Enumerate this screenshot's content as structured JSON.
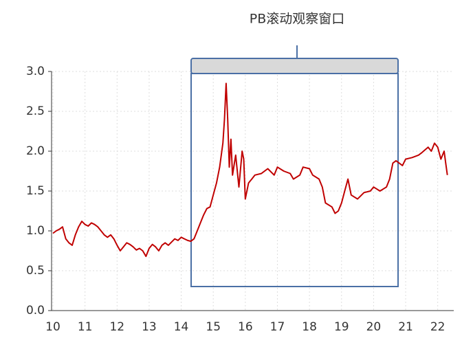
{
  "chart_data": {
    "type": "line",
    "annotation": "PB滚动观察窗口",
    "color": "#c00000",
    "grid": true,
    "x": [
      10.0,
      10.1,
      10.2,
      10.3,
      10.4,
      10.5,
      10.6,
      10.7,
      10.8,
      10.9,
      11.0,
      11.1,
      11.2,
      11.3,
      11.4,
      11.5,
      11.6,
      11.7,
      11.8,
      11.9,
      12.0,
      12.1,
      12.2,
      12.3,
      12.4,
      12.5,
      12.6,
      12.7,
      12.8,
      12.9,
      13.0,
      13.1,
      13.2,
      13.3,
      13.4,
      13.5,
      13.6,
      13.7,
      13.8,
      13.9,
      14.0,
      14.1,
      14.2,
      14.3,
      14.4,
      14.5,
      14.6,
      14.7,
      14.8,
      14.9,
      15.0,
      15.1,
      15.2,
      15.3,
      15.35,
      15.4,
      15.45,
      15.5,
      15.55,
      15.6,
      15.7,
      15.8,
      15.9,
      15.95,
      16.0,
      16.1,
      16.2,
      16.3,
      16.5,
      16.7,
      16.9,
      17.0,
      17.2,
      17.4,
      17.5,
      17.7,
      17.8,
      18.0,
      18.1,
      18.3,
      18.4,
      18.5,
      18.7,
      18.8,
      18.9,
      19.0,
      19.1,
      19.2,
      19.3,
      19.5,
      19.7,
      19.9,
      20.0,
      20.2,
      20.4,
      20.5,
      20.6,
      20.7,
      20.9,
      21.0,
      21.2,
      21.4,
      21.5,
      21.7,
      21.8,
      21.9,
      22.0,
      22.1,
      22.2,
      22.25,
      22.3
    ],
    "values": [
      0.97,
      1.0,
      1.02,
      1.05,
      0.9,
      0.85,
      0.82,
      0.95,
      1.05,
      1.12,
      1.08,
      1.06,
      1.1,
      1.08,
      1.05,
      1.0,
      0.95,
      0.92,
      0.95,
      0.9,
      0.82,
      0.75,
      0.8,
      0.85,
      0.83,
      0.8,
      0.76,
      0.78,
      0.75,
      0.68,
      0.78,
      0.83,
      0.8,
      0.75,
      0.82,
      0.85,
      0.82,
      0.86,
      0.9,
      0.88,
      0.92,
      0.9,
      0.88,
      0.87,
      0.9,
      1.0,
      1.1,
      1.2,
      1.28,
      1.3,
      1.45,
      1.6,
      1.8,
      2.1,
      2.4,
      2.85,
      2.4,
      1.8,
      2.15,
      1.7,
      1.95,
      1.55,
      2.0,
      1.9,
      1.4,
      1.6,
      1.65,
      1.7,
      1.72,
      1.78,
      1.7,
      1.8,
      1.75,
      1.72,
      1.65,
      1.7,
      1.8,
      1.78,
      1.7,
      1.65,
      1.55,
      1.35,
      1.3,
      1.22,
      1.25,
      1.35,
      1.5,
      1.65,
      1.45,
      1.4,
      1.48,
      1.5,
      1.55,
      1.5,
      1.55,
      1.65,
      1.85,
      1.88,
      1.82,
      1.9,
      1.92,
      1.95,
      1.98,
      2.05,
      2.0,
      2.1,
      2.05,
      1.9,
      2.0,
      1.85,
      1.7
    ],
    "xlim": [
      10,
      22.5
    ],
    "xticks": [
      10,
      11,
      12,
      13,
      14,
      15,
      16,
      17,
      18,
      19,
      20,
      21,
      22
    ],
    "ylim": [
      0,
      3
    ],
    "yticks": [
      {
        "value": 0,
        "label": "0.0"
      },
      {
        "value": 0.5,
        "label": "0.5"
      },
      {
        "value": 1,
        "label": "1.0"
      },
      {
        "value": 1.5,
        "label": "1.5"
      },
      {
        "value": 2,
        "label": "2.0"
      },
      {
        "value": 2.5,
        "label": "2.5"
      },
      {
        "value": 3,
        "label": "3.0"
      }
    ]
  }
}
